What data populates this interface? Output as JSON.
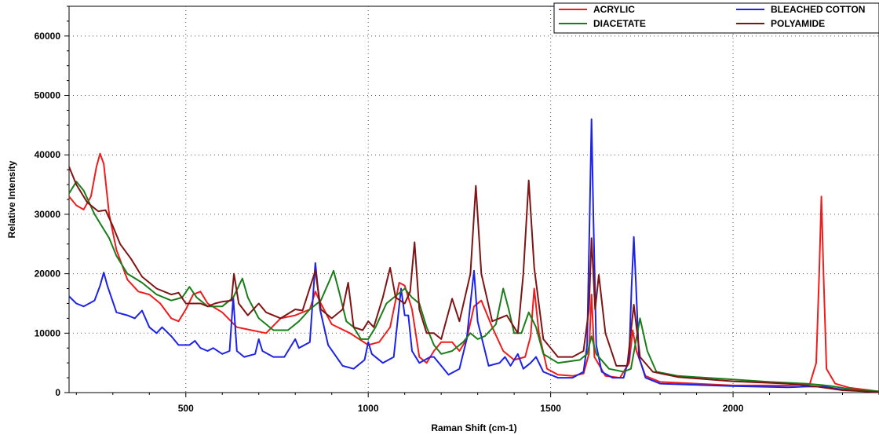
{
  "chart_data": {
    "type": "line",
    "xlabel": "Raman Shift (cm-1)",
    "ylabel": "Relative Intensity",
    "xlim": [
      180,
      2400
    ],
    "ylim": [
      0,
      65000
    ],
    "x_ticks": [
      500,
      1000,
      1500,
      2000
    ],
    "y_ticks": [
      0,
      10000,
      20000,
      30000,
      40000,
      50000,
      60000
    ],
    "grid": true,
    "legend_position": "top-right",
    "series": [
      {
        "name": "ACRYLIC",
        "color": "#ee1c1c",
        "points": [
          [
            180,
            33000
          ],
          [
            200,
            31500
          ],
          [
            220,
            30800
          ],
          [
            240,
            33000
          ],
          [
            255,
            38000
          ],
          [
            265,
            40200
          ],
          [
            275,
            38500
          ],
          [
            290,
            30000
          ],
          [
            310,
            24000
          ],
          [
            340,
            19000
          ],
          [
            370,
            17000
          ],
          [
            400,
            16500
          ],
          [
            430,
            15000
          ],
          [
            460,
            12500
          ],
          [
            480,
            12000
          ],
          [
            500,
            14000
          ],
          [
            520,
            16500
          ],
          [
            540,
            17000
          ],
          [
            560,
            15000
          ],
          [
            600,
            13500
          ],
          [
            640,
            11000
          ],
          [
            680,
            10500
          ],
          [
            720,
            10000
          ],
          [
            760,
            12500
          ],
          [
            800,
            13000
          ],
          [
            840,
            14000
          ],
          [
            855,
            17000
          ],
          [
            870,
            15000
          ],
          [
            900,
            11500
          ],
          [
            950,
            10000
          ],
          [
            1000,
            8000
          ],
          [
            1030,
            8500
          ],
          [
            1060,
            11000
          ],
          [
            1085,
            18500
          ],
          [
            1100,
            18000
          ],
          [
            1120,
            14000
          ],
          [
            1140,
            6000
          ],
          [
            1160,
            5000
          ],
          [
            1180,
            7000
          ],
          [
            1200,
            8500
          ],
          [
            1230,
            8500
          ],
          [
            1250,
            7000
          ],
          [
            1270,
            9000
          ],
          [
            1290,
            14500
          ],
          [
            1310,
            15500
          ],
          [
            1340,
            11000
          ],
          [
            1370,
            7000
          ],
          [
            1400,
            5500
          ],
          [
            1430,
            6000
          ],
          [
            1445,
            9500
          ],
          [
            1455,
            17500
          ],
          [
            1468,
            10000
          ],
          [
            1490,
            4000
          ],
          [
            1520,
            3000
          ],
          [
            1560,
            2800
          ],
          [
            1590,
            3200
          ],
          [
            1605,
            6500
          ],
          [
            1612,
            16500
          ],
          [
            1620,
            6000
          ],
          [
            1650,
            2800
          ],
          [
            1690,
            2500
          ],
          [
            1715,
            5000
          ],
          [
            1725,
            10500
          ],
          [
            1735,
            7000
          ],
          [
            1760,
            2800
          ],
          [
            1800,
            1800
          ],
          [
            2000,
            1200
          ],
          [
            2150,
            1200
          ],
          [
            2210,
            1400
          ],
          [
            2228,
            5000
          ],
          [
            2236,
            20000
          ],
          [
            2242,
            33000
          ],
          [
            2248,
            20000
          ],
          [
            2256,
            4000
          ],
          [
            2280,
            1500
          ],
          [
            2320,
            800
          ],
          [
            2400,
            200
          ]
        ]
      },
      {
        "name": "BLEACHED COTTON",
        "color": "#1c22e6",
        "points": [
          [
            180,
            16200
          ],
          [
            200,
            15000
          ],
          [
            220,
            14500
          ],
          [
            250,
            15500
          ],
          [
            265,
            18000
          ],
          [
            275,
            20200
          ],
          [
            285,
            18000
          ],
          [
            310,
            13500
          ],
          [
            340,
            13000
          ],
          [
            360,
            12500
          ],
          [
            380,
            13800
          ],
          [
            400,
            11000
          ],
          [
            420,
            10000
          ],
          [
            435,
            11000
          ],
          [
            460,
            9500
          ],
          [
            480,
            8000
          ],
          [
            510,
            8000
          ],
          [
            525,
            8700
          ],
          [
            540,
            7500
          ],
          [
            560,
            7000
          ],
          [
            575,
            7500
          ],
          [
            600,
            6500
          ],
          [
            620,
            7000
          ],
          [
            630,
            16000
          ],
          [
            640,
            7000
          ],
          [
            660,
            6000
          ],
          [
            690,
            6500
          ],
          [
            700,
            9000
          ],
          [
            710,
            7000
          ],
          [
            740,
            6000
          ],
          [
            770,
            6000
          ],
          [
            790,
            8000
          ],
          [
            800,
            9000
          ],
          [
            810,
            7500
          ],
          [
            840,
            8500
          ],
          [
            855,
            21800
          ],
          [
            868,
            14000
          ],
          [
            890,
            8000
          ],
          [
            930,
            4500
          ],
          [
            960,
            4000
          ],
          [
            990,
            5500
          ],
          [
            1000,
            8500
          ],
          [
            1010,
            6500
          ],
          [
            1040,
            5000
          ],
          [
            1070,
            6000
          ],
          [
            1090,
            17500
          ],
          [
            1100,
            13000
          ],
          [
            1110,
            13000
          ],
          [
            1120,
            7000
          ],
          [
            1140,
            5000
          ],
          [
            1170,
            6000
          ],
          [
            1180,
            6000
          ],
          [
            1200,
            4500
          ],
          [
            1220,
            3000
          ],
          [
            1250,
            4000
          ],
          [
            1270,
            9000
          ],
          [
            1280,
            15000
          ],
          [
            1290,
            20500
          ],
          [
            1300,
            12000
          ],
          [
            1330,
            4500
          ],
          [
            1360,
            5000
          ],
          [
            1375,
            6000
          ],
          [
            1390,
            4500
          ],
          [
            1410,
            6500
          ],
          [
            1425,
            4000
          ],
          [
            1445,
            5000
          ],
          [
            1460,
            6000
          ],
          [
            1480,
            3500
          ],
          [
            1520,
            2500
          ],
          [
            1560,
            2500
          ],
          [
            1590,
            3500
          ],
          [
            1600,
            8000
          ],
          [
            1607,
            30000
          ],
          [
            1612,
            46000
          ],
          [
            1617,
            30000
          ],
          [
            1625,
            8000
          ],
          [
            1640,
            3500
          ],
          [
            1670,
            2500
          ],
          [
            1700,
            2500
          ],
          [
            1715,
            6000
          ],
          [
            1722,
            18000
          ],
          [
            1728,
            26200
          ],
          [
            1734,
            18000
          ],
          [
            1742,
            6000
          ],
          [
            1760,
            2500
          ],
          [
            1800,
            1500
          ],
          [
            2000,
            1100
          ],
          [
            2150,
            900
          ],
          [
            2200,
            1000
          ],
          [
            2250,
            1000
          ],
          [
            2300,
            500
          ],
          [
            2400,
            100
          ]
        ]
      },
      {
        "name": "DIACETATE",
        "color": "#1a7d1a",
        "points": [
          [
            180,
            33500
          ],
          [
            200,
            35500
          ],
          [
            220,
            34000
          ],
          [
            250,
            30000
          ],
          [
            270,
            28000
          ],
          [
            290,
            26000
          ],
          [
            310,
            23000
          ],
          [
            340,
            20000
          ],
          [
            380,
            18500
          ],
          [
            420,
            16500
          ],
          [
            460,
            15500
          ],
          [
            490,
            16000
          ],
          [
            510,
            17800
          ],
          [
            530,
            16000
          ],
          [
            560,
            14500
          ],
          [
            600,
            14500
          ],
          [
            630,
            16000
          ],
          [
            655,
            19200
          ],
          [
            670,
            16000
          ],
          [
            700,
            12500
          ],
          [
            740,
            10500
          ],
          [
            780,
            10500
          ],
          [
            810,
            12000
          ],
          [
            840,
            14000
          ],
          [
            870,
            15500
          ],
          [
            895,
            19000
          ],
          [
            905,
            20500
          ],
          [
            920,
            17000
          ],
          [
            940,
            12000
          ],
          [
            960,
            11000
          ],
          [
            980,
            9000
          ],
          [
            1000,
            9000
          ],
          [
            1020,
            11000
          ],
          [
            1050,
            15000
          ],
          [
            1080,
            16500
          ],
          [
            1100,
            17500
          ],
          [
            1120,
            16000
          ],
          [
            1140,
            15000
          ],
          [
            1160,
            11000
          ],
          [
            1180,
            8000
          ],
          [
            1200,
            6500
          ],
          [
            1230,
            7000
          ],
          [
            1260,
            8500
          ],
          [
            1280,
            10000
          ],
          [
            1300,
            9000
          ],
          [
            1320,
            9500
          ],
          [
            1350,
            11500
          ],
          [
            1370,
            17500
          ],
          [
            1385,
            14000
          ],
          [
            1400,
            10000
          ],
          [
            1420,
            10000
          ],
          [
            1440,
            13500
          ],
          [
            1460,
            11000
          ],
          [
            1480,
            6500
          ],
          [
            1520,
            5000
          ],
          [
            1580,
            5500
          ],
          [
            1600,
            6500
          ],
          [
            1612,
            9500
          ],
          [
            1625,
            6500
          ],
          [
            1660,
            4000
          ],
          [
            1700,
            3500
          ],
          [
            1720,
            4000
          ],
          [
            1745,
            12500
          ],
          [
            1765,
            7000
          ],
          [
            1790,
            3500
          ],
          [
            1850,
            2800
          ],
          [
            2000,
            2200
          ],
          [
            2100,
            1800
          ],
          [
            2200,
            1500
          ],
          [
            2240,
            1300
          ],
          [
            2270,
            1100
          ],
          [
            2320,
            600
          ],
          [
            2400,
            200
          ]
        ]
      },
      {
        "name": "POLYAMIDE",
        "color": "#7f1414",
        "points": [
          [
            180,
            38000
          ],
          [
            200,
            35000
          ],
          [
            230,
            32000
          ],
          [
            260,
            30500
          ],
          [
            280,
            30700
          ],
          [
            300,
            28000
          ],
          [
            320,
            25000
          ],
          [
            350,
            22500
          ],
          [
            380,
            19500
          ],
          [
            420,
            17500
          ],
          [
            460,
            16500
          ],
          [
            480,
            16800
          ],
          [
            500,
            15000
          ],
          [
            540,
            15000
          ],
          [
            560,
            14500
          ],
          [
            580,
            15000
          ],
          [
            600,
            15300
          ],
          [
            625,
            15500
          ],
          [
            632,
            20000
          ],
          [
            645,
            15000
          ],
          [
            670,
            13000
          ],
          [
            700,
            15000
          ],
          [
            720,
            13500
          ],
          [
            760,
            12500
          ],
          [
            800,
            14000
          ],
          [
            820,
            13800
          ],
          [
            855,
            20500
          ],
          [
            870,
            14000
          ],
          [
            900,
            12500
          ],
          [
            930,
            14000
          ],
          [
            945,
            18500
          ],
          [
            960,
            11000
          ],
          [
            985,
            10500
          ],
          [
            1000,
            12000
          ],
          [
            1015,
            11000
          ],
          [
            1040,
            16000
          ],
          [
            1060,
            21000
          ],
          [
            1075,
            16000
          ],
          [
            1100,
            15000
          ],
          [
            1115,
            17000
          ],
          [
            1127,
            25300
          ],
          [
            1140,
            14000
          ],
          [
            1160,
            10000
          ],
          [
            1180,
            10000
          ],
          [
            1200,
            9000
          ],
          [
            1230,
            15800
          ],
          [
            1250,
            12000
          ],
          [
            1280,
            20000
          ],
          [
            1295,
            34800
          ],
          [
            1310,
            20000
          ],
          [
            1340,
            12000
          ],
          [
            1380,
            13000
          ],
          [
            1410,
            10000
          ],
          [
            1425,
            20000
          ],
          [
            1440,
            35700
          ],
          [
            1455,
            21000
          ],
          [
            1480,
            9000
          ],
          [
            1520,
            6000
          ],
          [
            1560,
            6000
          ],
          [
            1590,
            7000
          ],
          [
            1605,
            14000
          ],
          [
            1612,
            26000
          ],
          [
            1622,
            14000
          ],
          [
            1632,
            19800
          ],
          [
            1650,
            10000
          ],
          [
            1680,
            4500
          ],
          [
            1710,
            4500
          ],
          [
            1728,
            14800
          ],
          [
            1745,
            6000
          ],
          [
            1780,
            3500
          ],
          [
            1850,
            2600
          ],
          [
            2000,
            1900
          ],
          [
            2150,
            1500
          ],
          [
            2230,
            1000
          ],
          [
            2300,
            400
          ],
          [
            2400,
            100
          ]
        ]
      }
    ]
  }
}
